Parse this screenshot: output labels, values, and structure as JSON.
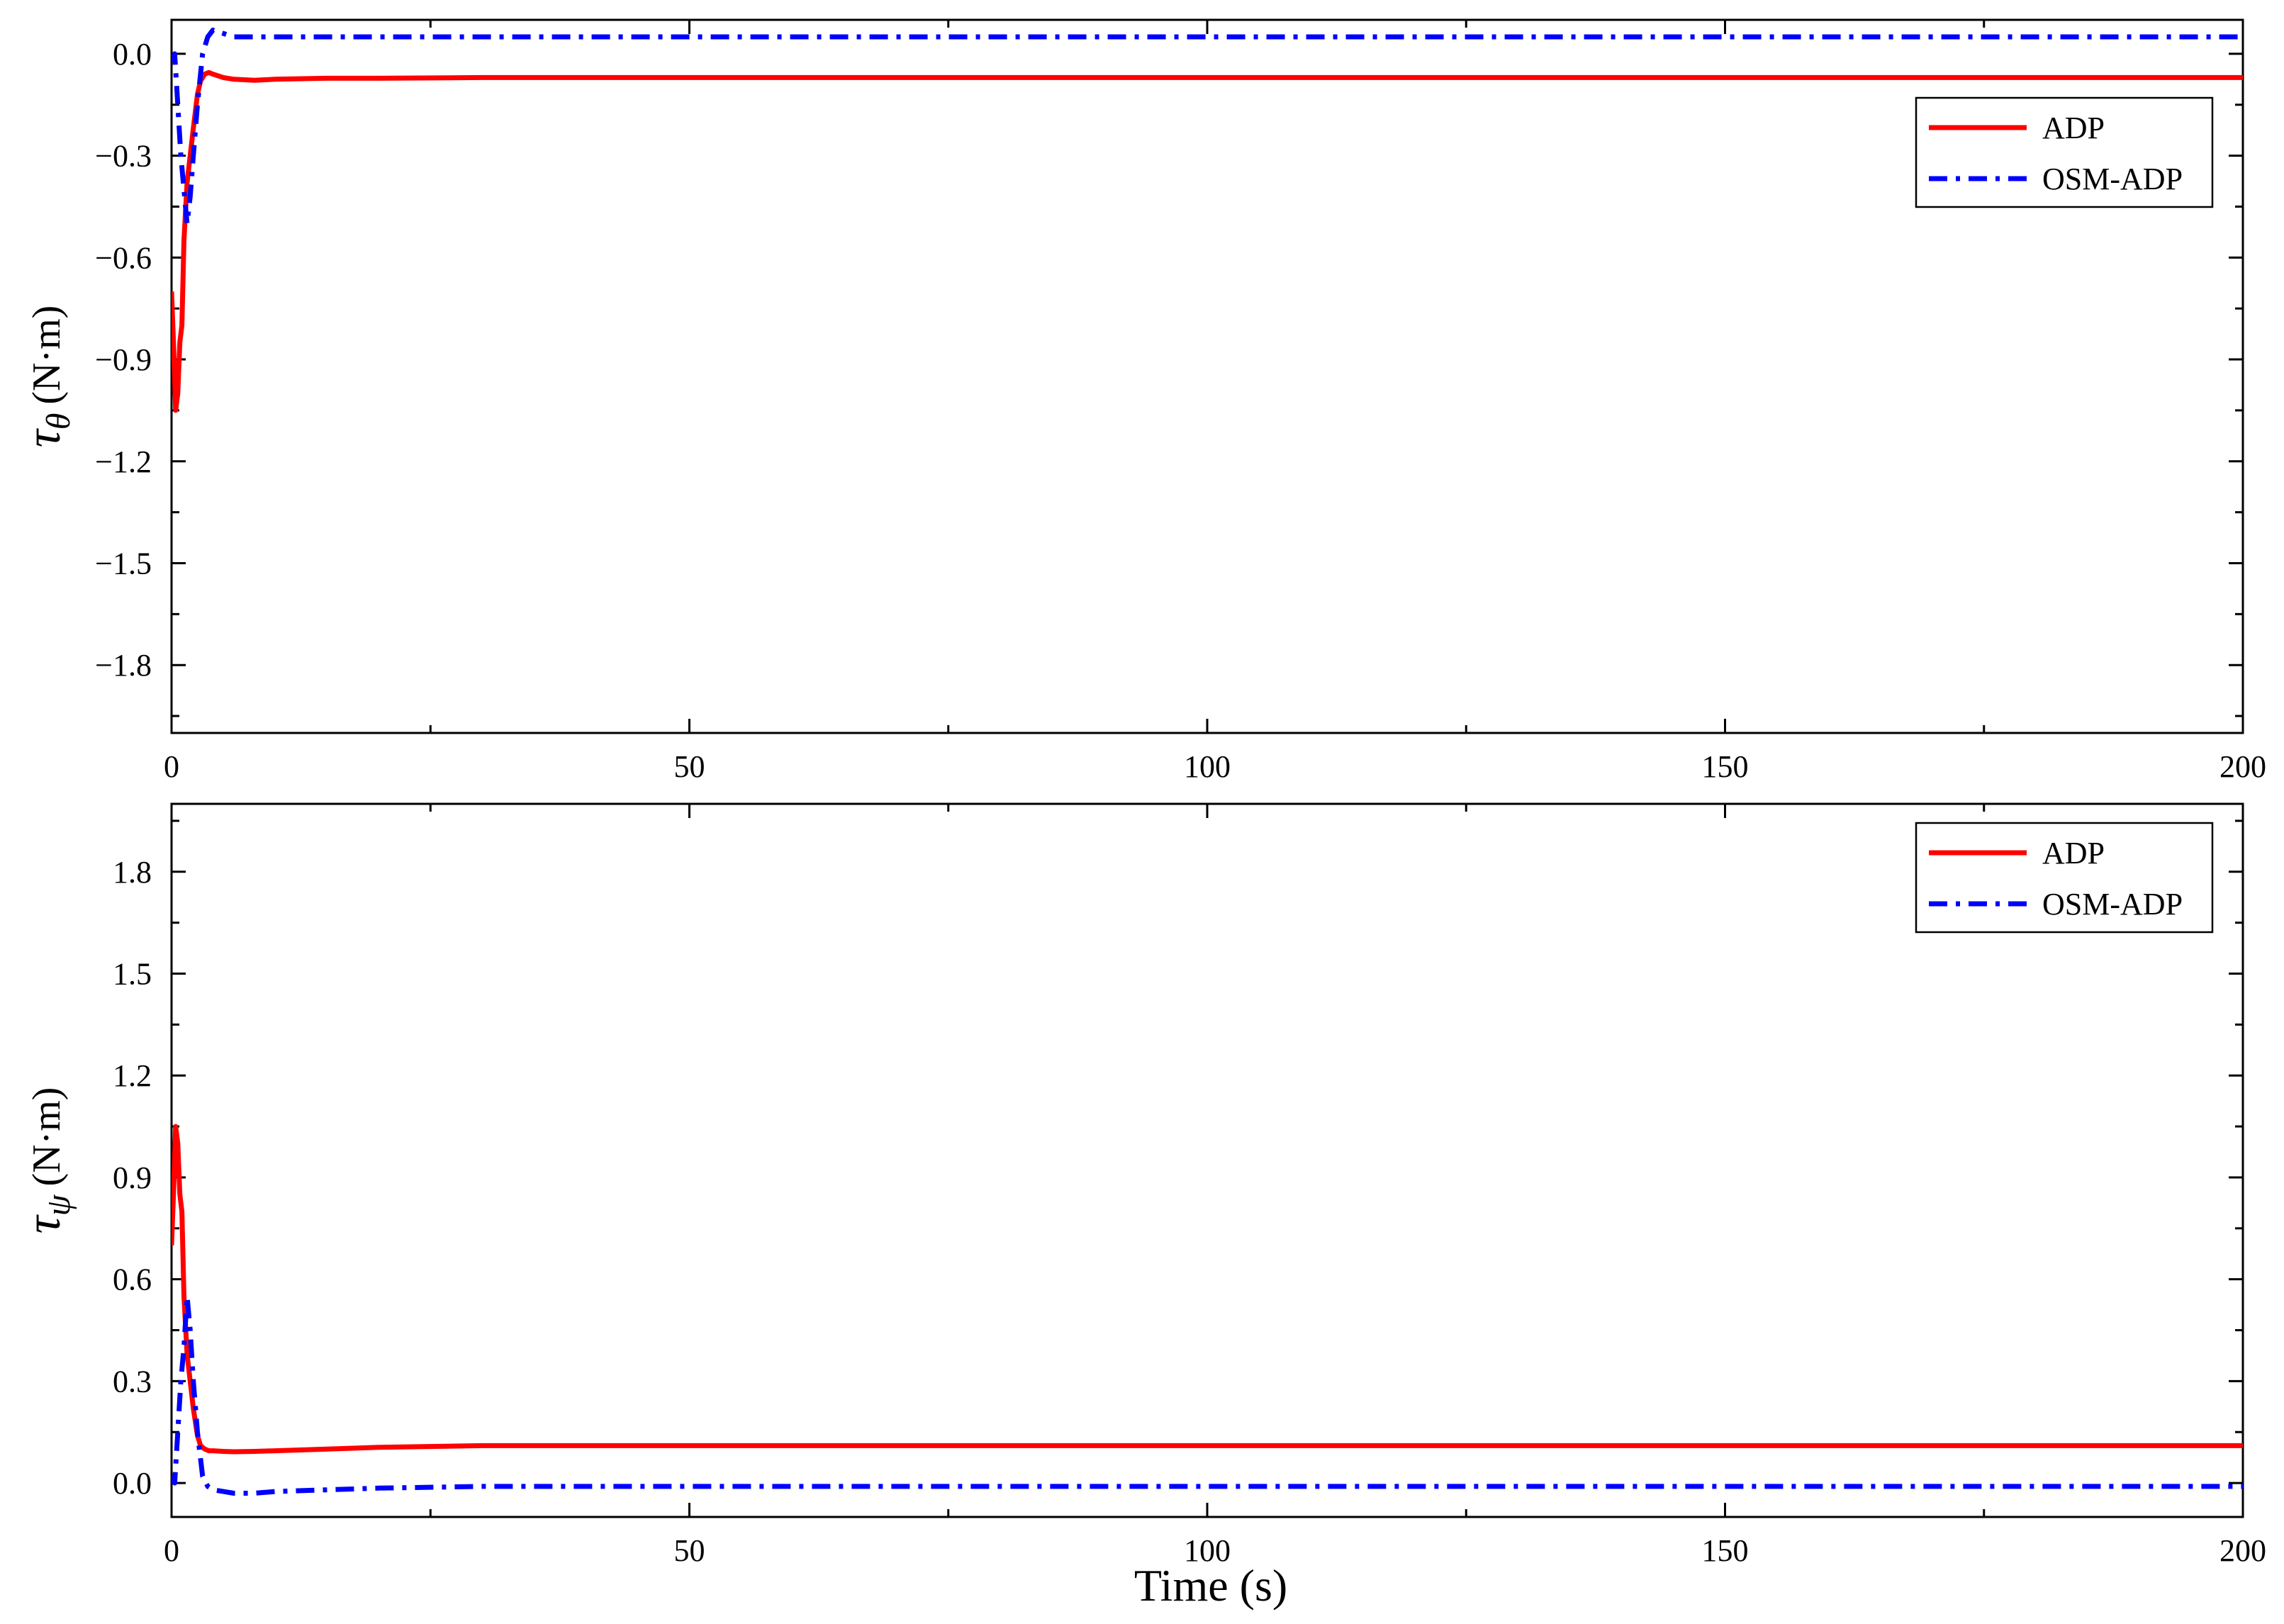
{
  "chart_data": [
    {
      "type": "line",
      "xlim": [
        0,
        200
      ],
      "ylim": [
        -2.0,
        0.1
      ],
      "x_ticks": [
        0,
        50,
        100,
        150,
        200
      ],
      "y_ticks": [
        0.0,
        -0.3,
        -0.6,
        -0.9,
        -1.2,
        -1.5,
        -1.8
      ],
      "y_tick_labels": [
        "0.0",
        "−0.3",
        "−0.6",
        "−0.9",
        "−1.2",
        "−1.5",
        "−1.8"
      ],
      "ylabel": {
        "symbol": "τ",
        "subscript": "θ",
        "unit": "(N·m)"
      },
      "grid": false,
      "legend_position": "top-right",
      "series": [
        {
          "name": "ADP",
          "color": "#ff0000",
          "style": "solid",
          "x": [
            0,
            0.2,
            0.4,
            0.6,
            0.8,
            1.0,
            1.2,
            1.5,
            1.8,
            2.1,
            2.5,
            2.8,
            3.2,
            3.6,
            4.0,
            5,
            6,
            8,
            10,
            15,
            20,
            30,
            50,
            100,
            150,
            200
          ],
          "y": [
            -0.7,
            -0.86,
            -1.05,
            -1.0,
            -0.85,
            -0.8,
            -0.55,
            -0.38,
            -0.3,
            -0.22,
            -0.12,
            -0.08,
            -0.06,
            -0.055,
            -0.06,
            -0.07,
            -0.075,
            -0.078,
            -0.075,
            -0.072,
            -0.072,
            -0.07,
            -0.07,
            -0.07,
            -0.07,
            -0.07
          ]
        },
        {
          "name": "OSM-ADP",
          "color": "#0000ff",
          "style": "dashdot",
          "x": [
            0,
            0.3,
            0.6,
            0.9,
            1.2,
            1.5,
            1.8,
            2.1,
            2.5,
            3.0,
            3.5,
            4.0,
            5,
            6,
            8,
            10,
            20,
            50,
            100,
            150,
            200
          ],
          "y": [
            -0.02,
            0.0,
            -0.15,
            -0.3,
            -0.4,
            -0.5,
            -0.42,
            -0.3,
            -0.15,
            0.0,
            0.05,
            0.07,
            0.06,
            0.05,
            0.05,
            0.05,
            0.05,
            0.05,
            0.05,
            0.05,
            0.05
          ]
        }
      ]
    },
    {
      "type": "line",
      "xlim": [
        0,
        200
      ],
      "ylim": [
        -0.1,
        2.0
      ],
      "x_ticks": [
        0,
        50,
        100,
        150,
        200
      ],
      "y_ticks": [
        0.0,
        0.3,
        0.6,
        0.9,
        1.2,
        1.5,
        1.8
      ],
      "y_tick_labels": [
        "0.0",
        "0.3",
        "0.6",
        "0.9",
        "1.2",
        "1.5",
        "1.8"
      ],
      "xlabel": "Time (s)",
      "ylabel": {
        "symbol": "τ",
        "subscript": "ψ",
        "unit": "(N·m)"
      },
      "grid": false,
      "legend_position": "top-right",
      "series": [
        {
          "name": "ADP",
          "color": "#ff0000",
          "style": "solid",
          "x": [
            0,
            0.2,
            0.4,
            0.6,
            0.8,
            1.0,
            1.2,
            1.5,
            1.8,
            2.1,
            2.5,
            2.8,
            3.2,
            3.6,
            4.0,
            5,
            6,
            8,
            10,
            15,
            20,
            30,
            50,
            100,
            150,
            200
          ],
          "y": [
            0.7,
            0.86,
            1.05,
            1.0,
            0.85,
            0.8,
            0.55,
            0.38,
            0.3,
            0.22,
            0.14,
            0.11,
            0.1,
            0.095,
            0.095,
            0.093,
            0.092,
            0.093,
            0.095,
            0.1,
            0.105,
            0.11,
            0.11,
            0.11,
            0.11,
            0.11
          ]
        },
        {
          "name": "OSM-ADP",
          "color": "#0000ff",
          "style": "dashdot",
          "x": [
            0,
            0.3,
            0.6,
            0.9,
            1.2,
            1.5,
            1.8,
            2.1,
            2.5,
            3.0,
            3.5,
            4.0,
            5,
            6,
            8,
            10,
            20,
            30,
            50,
            100,
            150,
            200
          ],
          "y": [
            0.02,
            0.0,
            0.15,
            0.3,
            0.4,
            0.55,
            0.45,
            0.3,
            0.15,
            0.02,
            -0.01,
            -0.02,
            -0.025,
            -0.03,
            -0.03,
            -0.025,
            -0.015,
            -0.01,
            -0.01,
            -0.01,
            -0.01,
            -0.01
          ]
        }
      ]
    }
  ]
}
